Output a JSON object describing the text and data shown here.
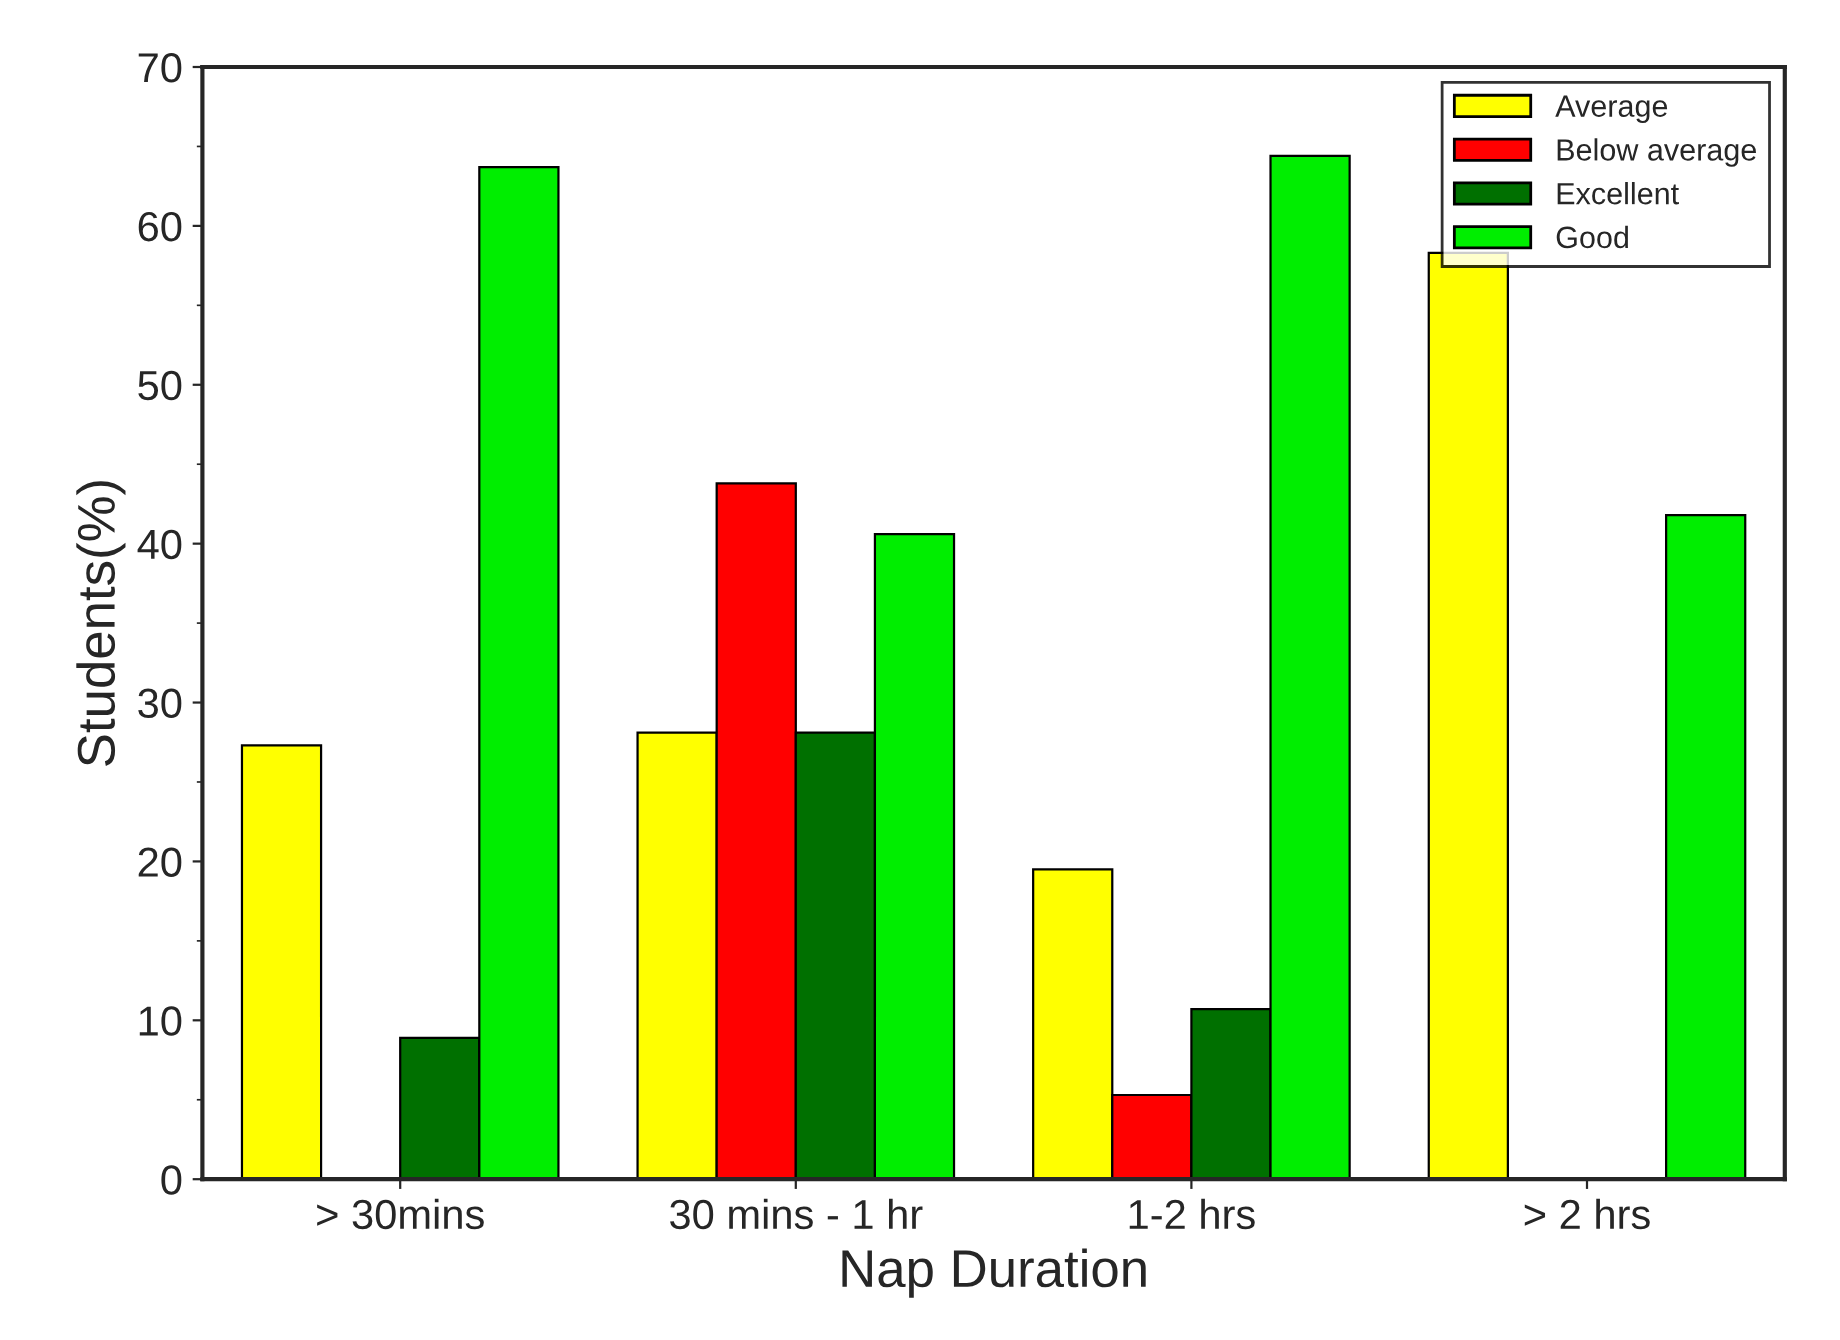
{
  "chart_data": {
    "type": "bar",
    "xlabel": "Nap Duration",
    "ylabel": "Students(%)",
    "categories": [
      "> 30mins",
      "30 mins - 1 hr",
      "1-2 hrs",
      "> 2 hrs"
    ],
    "series": [
      {
        "name": "Average",
        "color": "#ffff00",
        "values": [
          27.3,
          28.1,
          19.5,
          58.3
        ]
      },
      {
        "name": "Below average",
        "color": "#ff0000",
        "values": [
          null,
          43.8,
          5.3,
          null
        ]
      },
      {
        "name": "Excellent",
        "color": "#007000",
        "values": [
          8.9,
          28.1,
          10.7,
          null
        ]
      },
      {
        "name": "Good",
        "color": "#00ee00",
        "values": [
          63.7,
          40.6,
          64.4,
          41.8
        ]
      }
    ],
    "ylim": [
      0,
      70
    ],
    "yticks": [
      0,
      10,
      20,
      30,
      40,
      50,
      60,
      70
    ],
    "grid": false,
    "legend": "top right"
  }
}
